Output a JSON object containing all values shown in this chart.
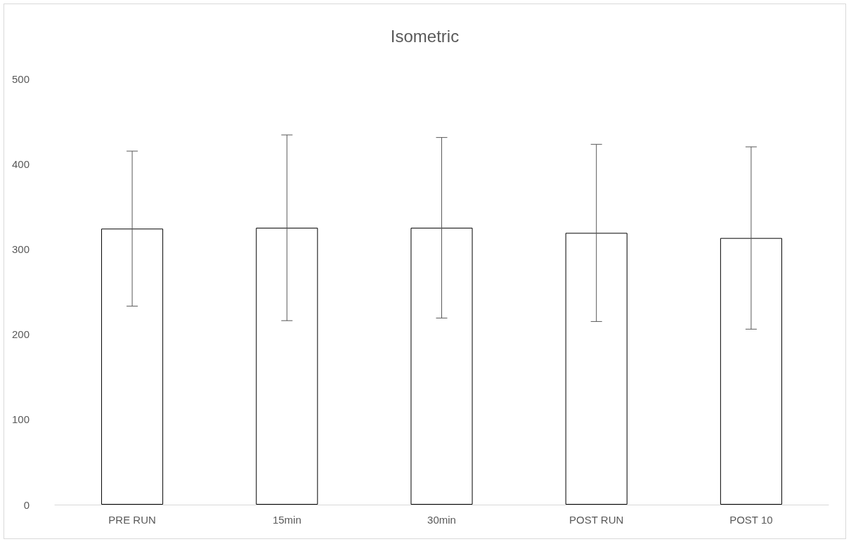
{
  "chart_data": {
    "type": "bar",
    "title": "Isometric",
    "categories": [
      "PRE RUN",
      "15min",
      "30min",
      "POST RUN",
      "POST 10"
    ],
    "values": [
      324,
      325,
      325,
      319,
      313
    ],
    "errors": [
      91,
      109,
      106,
      104,
      107
    ],
    "color": "#ffffff",
    "ylim": [
      0,
      500
    ],
    "yticks": [
      0,
      100,
      200,
      300,
      400,
      500
    ],
    "grid": false
  }
}
